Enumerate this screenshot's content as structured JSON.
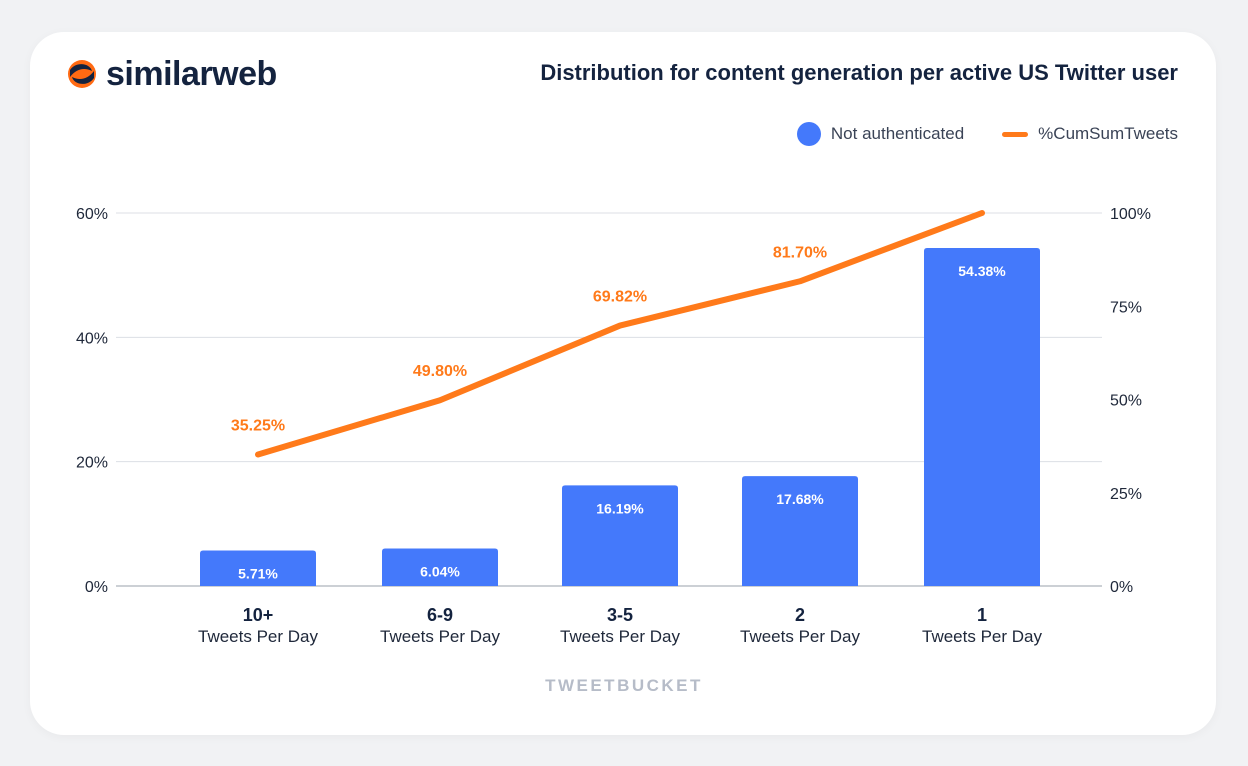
{
  "brand": {
    "name": "similarweb"
  },
  "colors": {
    "bar": "#4479fb",
    "line": "#ff7a1a",
    "grid": "#dcdfe5",
    "text": "#14233f"
  },
  "chart_data": {
    "type": "bar",
    "title": "Distribution for content generation per active US Twitter user",
    "xlabel": "TWEETBUCKET",
    "categories": [
      {
        "label": "10+",
        "sub": "Tweets Per Day"
      },
      {
        "label": "6-9",
        "sub": "Tweets Per Day"
      },
      {
        "label": "3-5",
        "sub": "Tweets Per Day"
      },
      {
        "label": "2",
        "sub": "Tweets Per Day"
      },
      {
        "label": "1",
        "sub": "Tweets Per Day"
      }
    ],
    "series": [
      {
        "name": "Not authenticated",
        "type": "bar",
        "axis": "left",
        "values": [
          5.71,
          6.04,
          16.19,
          17.68,
          54.38
        ],
        "labels": [
          "5.71%",
          "6.04%",
          "16.19%",
          "17.68%",
          "54.38%"
        ]
      },
      {
        "name": "%CumSumTweets",
        "type": "line",
        "axis": "right",
        "values": [
          35.25,
          49.8,
          69.82,
          81.7,
          100
        ],
        "labels": [
          "35.25%",
          "49.80%",
          "69.82%",
          "81.70%",
          ""
        ]
      }
    ],
    "left_axis": {
      "range": [
        0,
        60
      ],
      "ticks": [
        0,
        20,
        40,
        60
      ],
      "tick_labels": [
        "0%",
        "20%",
        "40%",
        "60%"
      ]
    },
    "right_axis": {
      "range": [
        0,
        100
      ],
      "ticks": [
        0,
        25,
        50,
        75,
        100
      ],
      "tick_labels": [
        "0%",
        "25%",
        "50%",
        "75%",
        "100%"
      ]
    },
    "grid": true,
    "legend": "top-right"
  }
}
